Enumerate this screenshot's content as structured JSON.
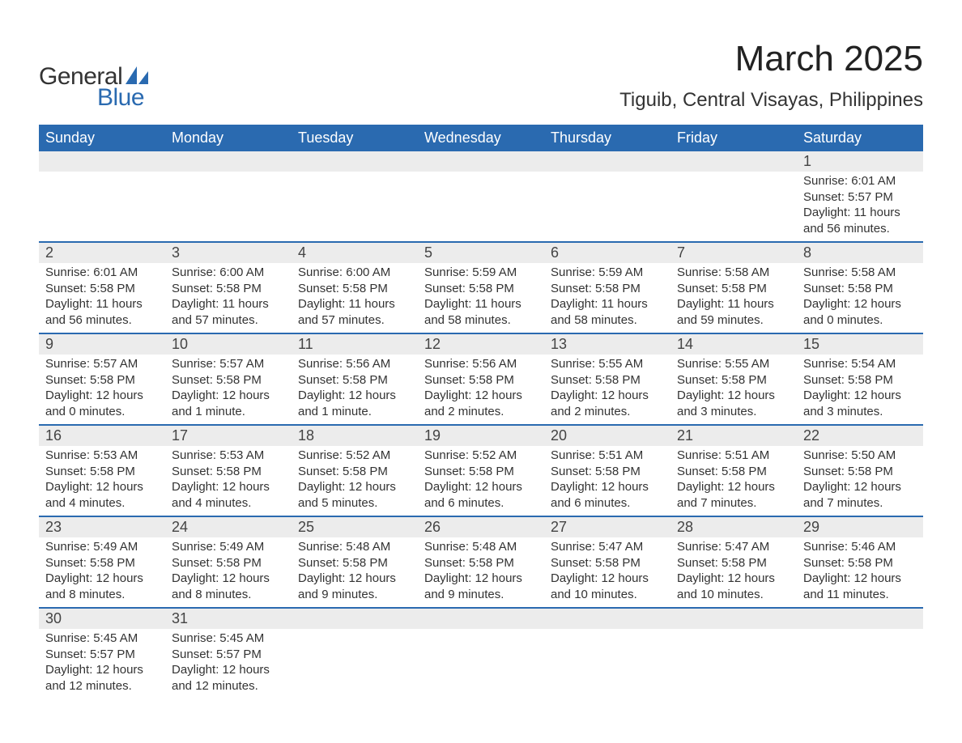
{
  "logo": {
    "text1": "General",
    "text2": "Blue",
    "accent_color": "#2a6ab0"
  },
  "title": "March 2025",
  "location": "Tiguib, Central Visayas, Philippines",
  "colors": {
    "header_bg": "#2a6ab0",
    "header_text": "#ffffff",
    "daynum_bg": "#ececec",
    "row_divider": "#2a6ab0",
    "body_text": "#333333"
  },
  "typography": {
    "title_fontsize": 44,
    "location_fontsize": 24,
    "header_fontsize": 18,
    "daynum_fontsize": 18,
    "cell_fontsize": 15
  },
  "calendar": {
    "type": "month-grid",
    "columns": [
      "Sunday",
      "Monday",
      "Tuesday",
      "Wednesday",
      "Thursday",
      "Friday",
      "Saturday"
    ],
    "weeks": [
      [
        null,
        null,
        null,
        null,
        null,
        null,
        {
          "day": "1",
          "sunrise": "Sunrise: 6:01 AM",
          "sunset": "Sunset: 5:57 PM",
          "daylight1": "Daylight: 11 hours",
          "daylight2": "and 56 minutes."
        }
      ],
      [
        {
          "day": "2",
          "sunrise": "Sunrise: 6:01 AM",
          "sunset": "Sunset: 5:58 PM",
          "daylight1": "Daylight: 11 hours",
          "daylight2": "and 56 minutes."
        },
        {
          "day": "3",
          "sunrise": "Sunrise: 6:00 AM",
          "sunset": "Sunset: 5:58 PM",
          "daylight1": "Daylight: 11 hours",
          "daylight2": "and 57 minutes."
        },
        {
          "day": "4",
          "sunrise": "Sunrise: 6:00 AM",
          "sunset": "Sunset: 5:58 PM",
          "daylight1": "Daylight: 11 hours",
          "daylight2": "and 57 minutes."
        },
        {
          "day": "5",
          "sunrise": "Sunrise: 5:59 AM",
          "sunset": "Sunset: 5:58 PM",
          "daylight1": "Daylight: 11 hours",
          "daylight2": "and 58 minutes."
        },
        {
          "day": "6",
          "sunrise": "Sunrise: 5:59 AM",
          "sunset": "Sunset: 5:58 PM",
          "daylight1": "Daylight: 11 hours",
          "daylight2": "and 58 minutes."
        },
        {
          "day": "7",
          "sunrise": "Sunrise: 5:58 AM",
          "sunset": "Sunset: 5:58 PM",
          "daylight1": "Daylight: 11 hours",
          "daylight2": "and 59 minutes."
        },
        {
          "day": "8",
          "sunrise": "Sunrise: 5:58 AM",
          "sunset": "Sunset: 5:58 PM",
          "daylight1": "Daylight: 12 hours",
          "daylight2": "and 0 minutes."
        }
      ],
      [
        {
          "day": "9",
          "sunrise": "Sunrise: 5:57 AM",
          "sunset": "Sunset: 5:58 PM",
          "daylight1": "Daylight: 12 hours",
          "daylight2": "and 0 minutes."
        },
        {
          "day": "10",
          "sunrise": "Sunrise: 5:57 AM",
          "sunset": "Sunset: 5:58 PM",
          "daylight1": "Daylight: 12 hours",
          "daylight2": "and 1 minute."
        },
        {
          "day": "11",
          "sunrise": "Sunrise: 5:56 AM",
          "sunset": "Sunset: 5:58 PM",
          "daylight1": "Daylight: 12 hours",
          "daylight2": "and 1 minute."
        },
        {
          "day": "12",
          "sunrise": "Sunrise: 5:56 AM",
          "sunset": "Sunset: 5:58 PM",
          "daylight1": "Daylight: 12 hours",
          "daylight2": "and 2 minutes."
        },
        {
          "day": "13",
          "sunrise": "Sunrise: 5:55 AM",
          "sunset": "Sunset: 5:58 PM",
          "daylight1": "Daylight: 12 hours",
          "daylight2": "and 2 minutes."
        },
        {
          "day": "14",
          "sunrise": "Sunrise: 5:55 AM",
          "sunset": "Sunset: 5:58 PM",
          "daylight1": "Daylight: 12 hours",
          "daylight2": "and 3 minutes."
        },
        {
          "day": "15",
          "sunrise": "Sunrise: 5:54 AM",
          "sunset": "Sunset: 5:58 PM",
          "daylight1": "Daylight: 12 hours",
          "daylight2": "and 3 minutes."
        }
      ],
      [
        {
          "day": "16",
          "sunrise": "Sunrise: 5:53 AM",
          "sunset": "Sunset: 5:58 PM",
          "daylight1": "Daylight: 12 hours",
          "daylight2": "and 4 minutes."
        },
        {
          "day": "17",
          "sunrise": "Sunrise: 5:53 AM",
          "sunset": "Sunset: 5:58 PM",
          "daylight1": "Daylight: 12 hours",
          "daylight2": "and 4 minutes."
        },
        {
          "day": "18",
          "sunrise": "Sunrise: 5:52 AM",
          "sunset": "Sunset: 5:58 PM",
          "daylight1": "Daylight: 12 hours",
          "daylight2": "and 5 minutes."
        },
        {
          "day": "19",
          "sunrise": "Sunrise: 5:52 AM",
          "sunset": "Sunset: 5:58 PM",
          "daylight1": "Daylight: 12 hours",
          "daylight2": "and 6 minutes."
        },
        {
          "day": "20",
          "sunrise": "Sunrise: 5:51 AM",
          "sunset": "Sunset: 5:58 PM",
          "daylight1": "Daylight: 12 hours",
          "daylight2": "and 6 minutes."
        },
        {
          "day": "21",
          "sunrise": "Sunrise: 5:51 AM",
          "sunset": "Sunset: 5:58 PM",
          "daylight1": "Daylight: 12 hours",
          "daylight2": "and 7 minutes."
        },
        {
          "day": "22",
          "sunrise": "Sunrise: 5:50 AM",
          "sunset": "Sunset: 5:58 PM",
          "daylight1": "Daylight: 12 hours",
          "daylight2": "and 7 minutes."
        }
      ],
      [
        {
          "day": "23",
          "sunrise": "Sunrise: 5:49 AM",
          "sunset": "Sunset: 5:58 PM",
          "daylight1": "Daylight: 12 hours",
          "daylight2": "and 8 minutes."
        },
        {
          "day": "24",
          "sunrise": "Sunrise: 5:49 AM",
          "sunset": "Sunset: 5:58 PM",
          "daylight1": "Daylight: 12 hours",
          "daylight2": "and 8 minutes."
        },
        {
          "day": "25",
          "sunrise": "Sunrise: 5:48 AM",
          "sunset": "Sunset: 5:58 PM",
          "daylight1": "Daylight: 12 hours",
          "daylight2": "and 9 minutes."
        },
        {
          "day": "26",
          "sunrise": "Sunrise: 5:48 AM",
          "sunset": "Sunset: 5:58 PM",
          "daylight1": "Daylight: 12 hours",
          "daylight2": "and 9 minutes."
        },
        {
          "day": "27",
          "sunrise": "Sunrise: 5:47 AM",
          "sunset": "Sunset: 5:58 PM",
          "daylight1": "Daylight: 12 hours",
          "daylight2": "and 10 minutes."
        },
        {
          "day": "28",
          "sunrise": "Sunrise: 5:47 AM",
          "sunset": "Sunset: 5:58 PM",
          "daylight1": "Daylight: 12 hours",
          "daylight2": "and 10 minutes."
        },
        {
          "day": "29",
          "sunrise": "Sunrise: 5:46 AM",
          "sunset": "Sunset: 5:58 PM",
          "daylight1": "Daylight: 12 hours",
          "daylight2": "and 11 minutes."
        }
      ],
      [
        {
          "day": "30",
          "sunrise": "Sunrise: 5:45 AM",
          "sunset": "Sunset: 5:57 PM",
          "daylight1": "Daylight: 12 hours",
          "daylight2": "and 12 minutes."
        },
        {
          "day": "31",
          "sunrise": "Sunrise: 5:45 AM",
          "sunset": "Sunset: 5:57 PM",
          "daylight1": "Daylight: 12 hours",
          "daylight2": "and 12 minutes."
        },
        null,
        null,
        null,
        null,
        null
      ]
    ]
  }
}
